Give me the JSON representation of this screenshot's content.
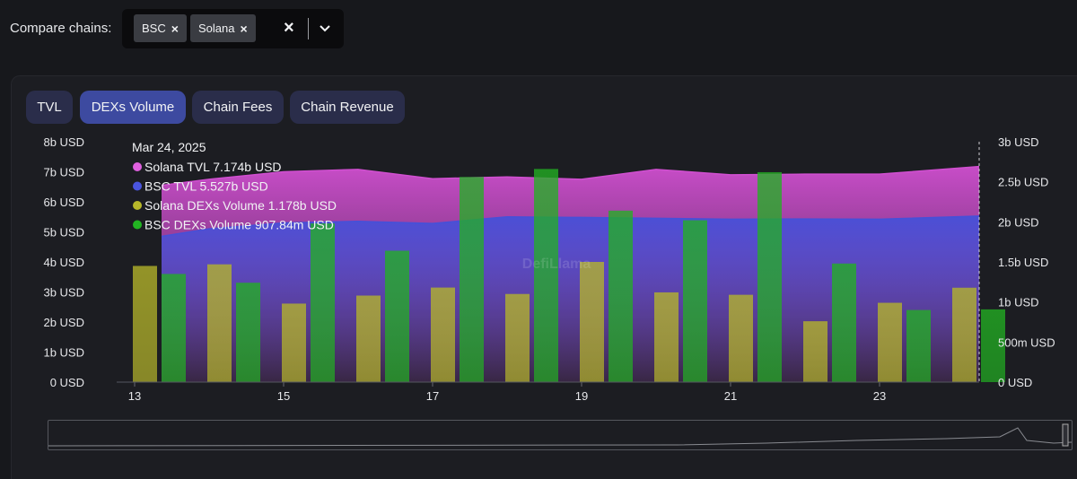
{
  "compare": {
    "label": "Compare chains:",
    "chips": [
      "BSC",
      "Solana"
    ],
    "remove_glyph": "×",
    "clear_glyph": "×",
    "dropdown_icon": "chevron-down-icon"
  },
  "tabs": [
    {
      "label": "TVL",
      "active": false
    },
    {
      "label": "DEXs Volume",
      "active": true
    },
    {
      "label": "Chain Fees",
      "active": false
    },
    {
      "label": "Chain Revenue",
      "active": false
    }
  ],
  "watermark": "DefiLlama",
  "tooltip": {
    "date": "Mar 24, 2025",
    "rows": [
      {
        "name": "Solana TVL",
        "value": "7.174b USD",
        "color": "#e060e0"
      },
      {
        "name": "BSC TVL",
        "value": "5.527b USD",
        "color": "#4a55e0"
      },
      {
        "name": "Solana DEXs Volume",
        "value": "1.178b USD",
        "color": "#b8b82a"
      },
      {
        "name": "BSC DEXs Volume",
        "value": "907.84m USD",
        "color": "#22b522"
      }
    ]
  },
  "chart_data": {
    "type": "bar+area",
    "x_tick_labels": [
      "13",
      "15",
      "17",
      "19",
      "21",
      "23"
    ],
    "left_axis": {
      "ticks": [
        "0 USD",
        "1b USD",
        "2b USD",
        "3b USD",
        "4b USD",
        "5b USD",
        "6b USD",
        "7b USD",
        "8b USD"
      ],
      "ylim": [
        0,
        8000000000
      ]
    },
    "right_axis": {
      "ticks": [
        "0 USD",
        "500m USD",
        "1b USD",
        "1.5b USD",
        "2b USD",
        "2.5b USD",
        "3b USD"
      ],
      "ylim": [
        0,
        3000000000
      ]
    },
    "days": [
      13,
      14,
      15,
      16,
      17,
      18,
      19,
      20,
      21,
      22,
      23,
      24
    ],
    "series": [
      {
        "name": "Solana TVL",
        "axis": "left",
        "kind": "area",
        "color": "#d04fd0",
        "values": [
          6.55,
          6.75,
          7.0,
          7.08,
          6.77,
          6.83,
          6.75,
          7.08,
          6.9,
          6.92,
          6.92,
          7.174
        ]
      },
      {
        "name": "BSC TVL",
        "axis": "left",
        "kind": "area",
        "color": "#4650d8",
        "values": [
          4.85,
          5.1,
          5.3,
          5.35,
          5.28,
          5.5,
          5.48,
          5.45,
          5.42,
          5.43,
          5.42,
          5.527
        ]
      },
      {
        "name": "Solana DEXs Volume",
        "axis": "right",
        "kind": "bar",
        "color": "#b5b52a",
        "values": [
          1.45,
          1.47,
          0.98,
          1.08,
          1.18,
          1.1,
          1.5,
          1.12,
          1.09,
          0.76,
          0.99,
          1.178
        ]
      },
      {
        "name": "BSC DEXs Volume",
        "axis": "right",
        "kind": "bar",
        "color": "#22b022",
        "values": [
          1.35,
          1.24,
          1.98,
          1.64,
          2.56,
          2.66,
          2.14,
          2.02,
          2.62,
          1.48,
          0.9,
          0.90784
        ]
      }
    ],
    "grid": false,
    "legend": "tooltip top-left"
  }
}
